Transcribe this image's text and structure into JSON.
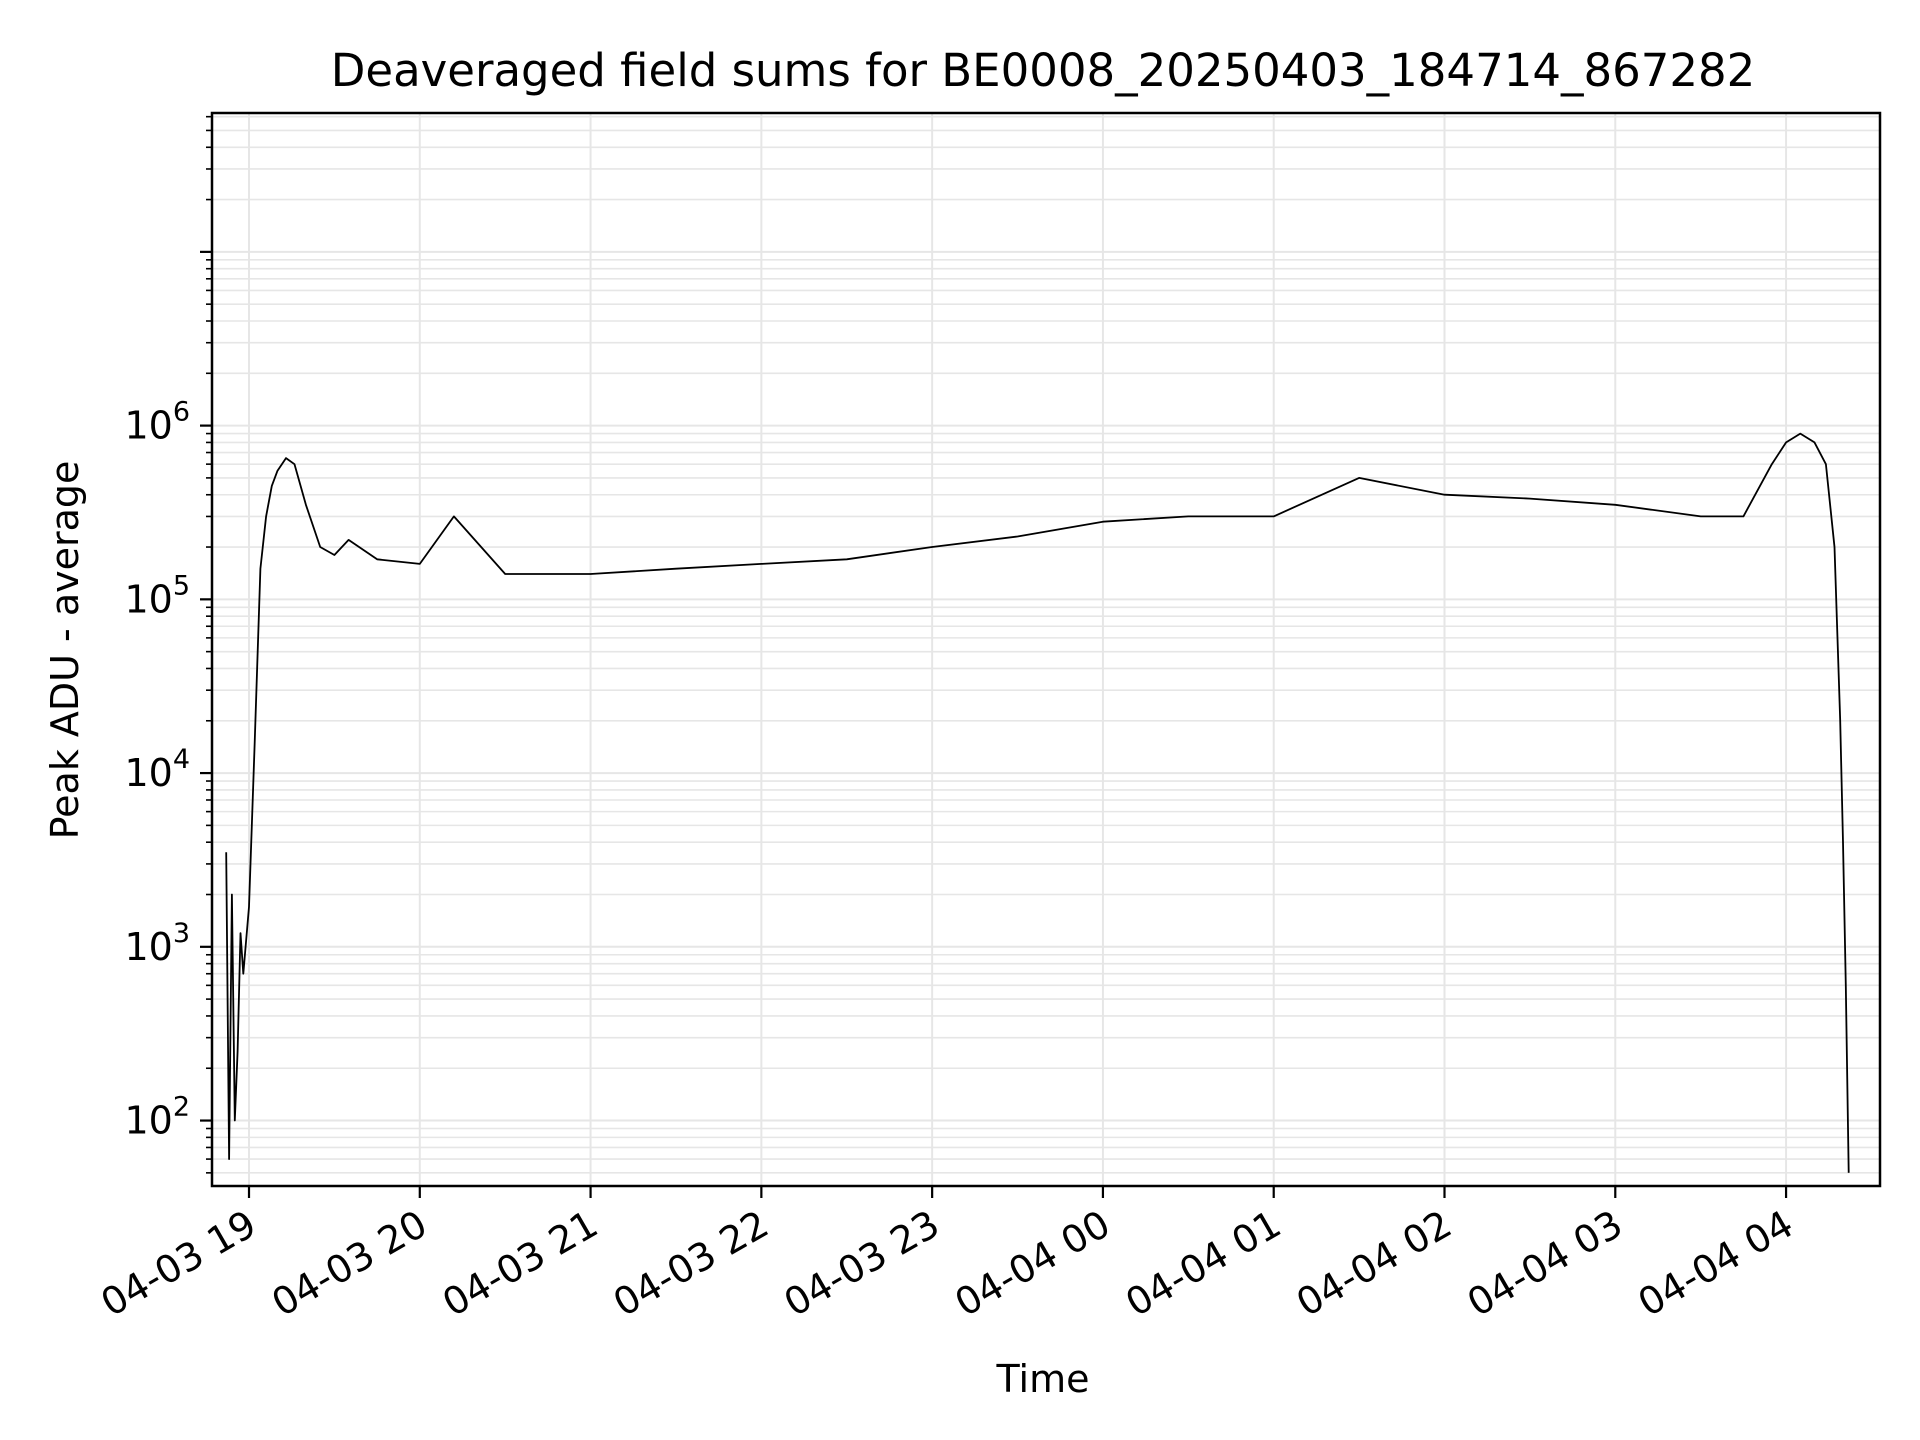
{
  "chart_data": {
    "type": "line",
    "title": "Deaveraged field sums for BE0008_20250403_184714_867282",
    "xlabel": "Time",
    "ylabel": "Peak ADU - average",
    "yscale": "log",
    "grid": true,
    "grid_color": "#e6e6e6",
    "line_color": "#000000",
    "xlim": [
      "2025-04-03 18:47",
      "2025-04-04 04:33"
    ],
    "ylim": [
      42,
      63000000
    ],
    "x_ticks": [
      "2025-04-03 19:00",
      "2025-04-03 20:00",
      "2025-04-03 21:00",
      "2025-04-03 22:00",
      "2025-04-03 23:00",
      "2025-04-04 00:00",
      "2025-04-04 01:00",
      "2025-04-04 02:00",
      "2025-04-04 03:00",
      "2025-04-04 04:00"
    ],
    "x_tick_labels": [
      "04-03 19",
      "04-03 20",
      "04-03 21",
      "04-03 22",
      "04-03 23",
      "04-04 00",
      "04-04 01",
      "04-04 02",
      "04-04 03",
      "04-04 04"
    ],
    "y_ticks": [
      100,
      1000,
      10000,
      100000,
      1000000
    ],
    "y_tick_base": "10",
    "y_tick_exponents": [
      "2",
      "3",
      "4",
      "5",
      "6"
    ],
    "series": [
      {
        "x": [
          "2025-04-03 18:52",
          "2025-04-03 18:53",
          "2025-04-03 18:54",
          "2025-04-03 18:55",
          "2025-04-03 18:56",
          "2025-04-03 18:57",
          "2025-04-03 18:58",
          "2025-04-03 19:00",
          "2025-04-03 19:02",
          "2025-04-03 19:04",
          "2025-04-03 19:06",
          "2025-04-03 19:08",
          "2025-04-03 19:10",
          "2025-04-03 19:13",
          "2025-04-03 19:16",
          "2025-04-03 19:20",
          "2025-04-03 19:25",
          "2025-04-03 19:30",
          "2025-04-03 19:35",
          "2025-04-03 19:45",
          "2025-04-03 20:00",
          "2025-04-03 20:12",
          "2025-04-03 20:30",
          "2025-04-03 21:00",
          "2025-04-03 21:30",
          "2025-04-03 22:00",
          "2025-04-03 22:30",
          "2025-04-03 23:00",
          "2025-04-03 23:30",
          "2025-04-04 00:00",
          "2025-04-04 00:30",
          "2025-04-04 01:00",
          "2025-04-04 01:30",
          "2025-04-04 02:00",
          "2025-04-04 02:30",
          "2025-04-04 03:00",
          "2025-04-04 03:30",
          "2025-04-04 03:45",
          "2025-04-04 03:55",
          "2025-04-04 04:00",
          "2025-04-04 04:05",
          "2025-04-04 04:10",
          "2025-04-04 04:14",
          "2025-04-04 04:17",
          "2025-04-04 04:19",
          "2025-04-04 04:20",
          "2025-04-04 04:21",
          "2025-04-04 04:22"
        ],
        "y": [
          3500,
          60,
          2000,
          100,
          250,
          1200,
          700,
          1700,
          15000,
          150000,
          300000,
          450000,
          550000,
          650000,
          600000,
          350000,
          200000,
          180000,
          220000,
          170000,
          160000,
          300000,
          140000,
          140000,
          150000,
          160000,
          170000,
          200000,
          230000,
          280000,
          300000,
          300000,
          500000,
          400000,
          380000,
          350000,
          300000,
          300000,
          600000,
          800000,
          900000,
          800000,
          600000,
          200000,
          20000,
          4000,
          600,
          50
        ]
      }
    ]
  }
}
